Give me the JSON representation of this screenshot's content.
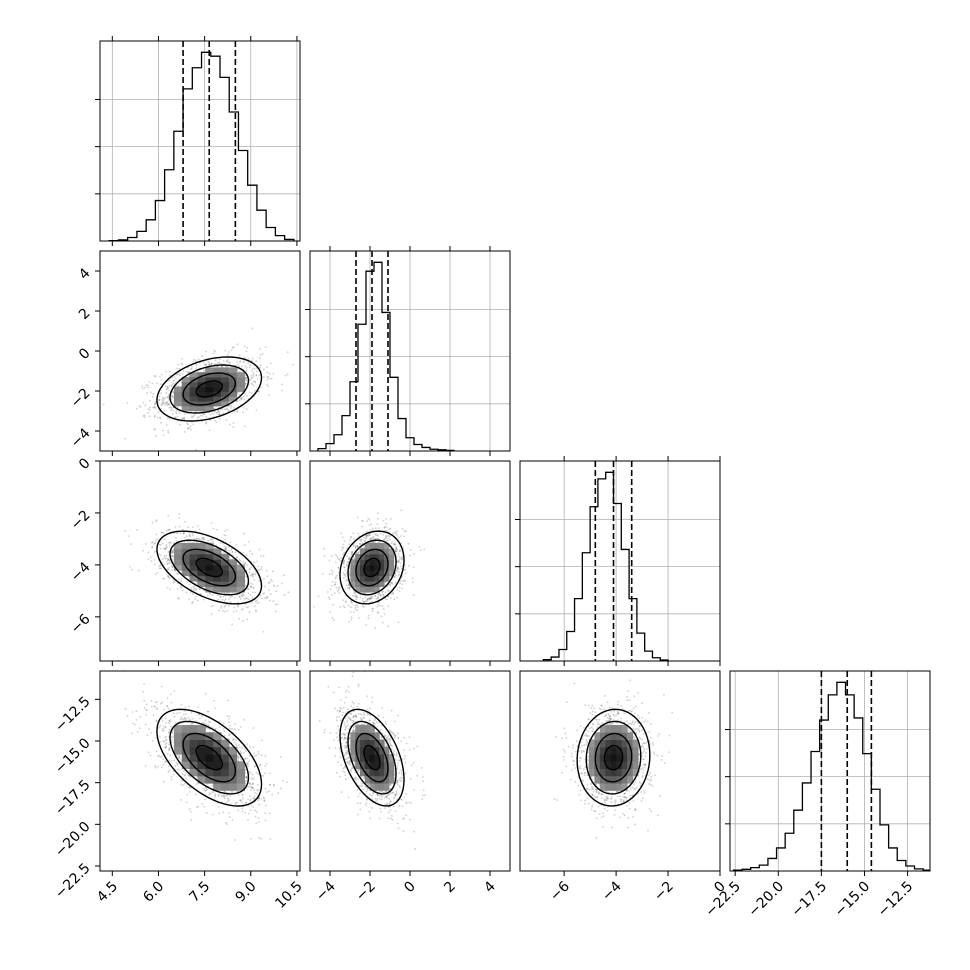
{
  "chart_data": {
    "type": "corner",
    "parameters": [
      {
        "median": 7.65,
        "q16": 6.8,
        "q84": 8.5,
        "range": [
          4.1,
          10.6
        ],
        "ticks": [
          "4.5",
          "6.0",
          "7.5",
          "9.0",
          "10.5"
        ],
        "hist": {
          "edges": [
            4.4,
            4.7,
            5.0,
            5.3,
            5.6,
            5.9,
            6.2,
            6.5,
            6.8,
            7.1,
            7.4,
            7.7,
            8.0,
            8.3,
            8.6,
            8.9,
            9.2,
            9.5,
            9.8,
            10.1,
            10.4
          ],
          "counts": [
            1,
            3,
            9,
            25,
            55,
            105,
            185,
            285,
            395,
            450,
            490,
            480,
            425,
            335,
            235,
            145,
            80,
            35,
            14,
            4
          ]
        }
      },
      {
        "median": -1.9,
        "q16": -2.7,
        "q84": -1.1,
        "range": [
          -5.0,
          5.0
        ],
        "ticks": [
          "−4",
          "−2",
          "0",
          "2",
          "4"
        ],
        "ylim_offdiag": [
          -5.0,
          5.0
        ],
        "yticks_offdiag": [
          "−4",
          "−2",
          "0",
          "2",
          "4"
        ],
        "hist": {
          "edges": [
            -4.6,
            -4.2,
            -3.8,
            -3.4,
            -3.0,
            -2.6,
            -2.2,
            -1.8,
            -1.4,
            -1.0,
            -0.6,
            -0.2,
            0.2,
            0.6,
            1.0,
            1.4,
            1.8,
            2.2
          ],
          "counts": [
            8,
            25,
            55,
            120,
            235,
            430,
            610,
            640,
            470,
            250,
            110,
            45,
            22,
            12,
            6,
            4,
            2
          ]
        }
      },
      {
        "median": -4.1,
        "q16": -4.8,
        "q84": -3.4,
        "range": [
          -7.7,
          0.0
        ],
        "ticks": [
          "−6",
          "−4",
          "−2",
          "0"
        ],
        "ylim_offdiag": [
          -7.7,
          0.0
        ],
        "yticks_offdiag": [
          "0",
          "−2",
          "−4",
          "−6"
        ],
        "hist": {
          "edges": [
            -6.8,
            -6.5,
            -6.2,
            -5.9,
            -5.6,
            -5.3,
            -5.0,
            -4.7,
            -4.4,
            -4.1,
            -3.8,
            -3.5,
            -3.2,
            -2.9,
            -2.6,
            -2.3,
            -2.0
          ],
          "counts": [
            4,
            12,
            35,
            90,
            190,
            330,
            470,
            555,
            575,
            480,
            340,
            190,
            85,
            30,
            10,
            3
          ]
        }
      },
      {
        "median": -16.0,
        "q16": -17.5,
        "q84": -14.6,
        "range": [
          -22.8,
          -11.2
        ],
        "ticks": [
          "−22.5",
          "−20.0",
          "−17.5",
          "−15.0",
          "−12.5"
        ],
        "ylim_offdiag": [
          -22.8,
          -10.8
        ],
        "yticks_offdiag": [
          "−12.5",
          "−15.0",
          "−17.5",
          "−20.0",
          "−22.5"
        ],
        "hist": {
          "edges": [
            -22.6,
            -22.1,
            -21.6,
            -21.1,
            -20.6,
            -20.1,
            -19.6,
            -19.1,
            -18.6,
            -18.1,
            -17.6,
            -17.1,
            -16.6,
            -16.1,
            -15.6,
            -15.1,
            -14.6,
            -14.1,
            -13.6,
            -13.1,
            -12.6,
            -12.1,
            -11.6,
            -11.2
          ],
          "counts": [
            2,
            4,
            8,
            14,
            30,
            55,
            90,
            145,
            210,
            285,
            360,
            420,
            450,
            420,
            365,
            280,
            195,
            110,
            55,
            25,
            12,
            5,
            2
          ]
        }
      }
    ],
    "covariance": {
      "1,0": {
        "rho": 0.35
      },
      "2,0": {
        "rho": -0.5
      },
      "2,1": {
        "rho": 0.2
      },
      "3,0": {
        "rho": -0.55
      },
      "3,1": {
        "rho": -0.45
      },
      "3,2": {
        "rho": 0.05
      }
    },
    "sigmas": [
      0.85,
      0.8,
      0.7,
      1.45
    ],
    "contour_levels": [
      0.5,
      1.0,
      1.5,
      2.0
    ],
    "grid": true,
    "quantile_line_style": "dashed"
  }
}
